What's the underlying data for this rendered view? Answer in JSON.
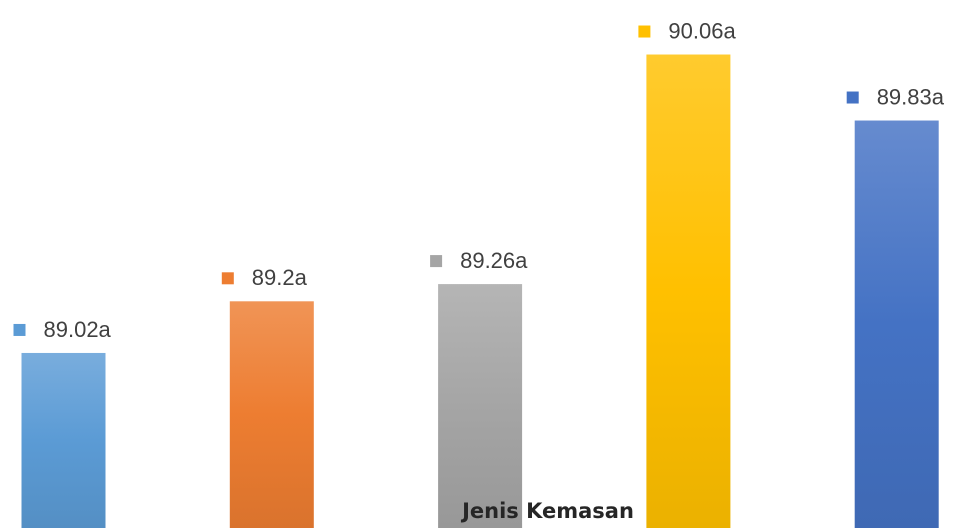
{
  "chart_data": {
    "type": "bar",
    "xlabel": "Jenis Kemasan",
    "categories": [
      null,
      null,
      null,
      null,
      null
    ],
    "values": [
      89.02,
      89.2,
      89.26,
      90.06,
      89.83
    ],
    "value_labels": [
      "89.02a",
      "89.2a",
      "89.26a",
      "90.06a",
      "89.83a"
    ],
    "colors": [
      "#5b9bd5",
      "#ed7d31",
      "#a5a5a5",
      "#ffc000",
      "#4472c4"
    ],
    "ylim": [
      88.41,
      90.25
    ],
    "grid": false
  }
}
